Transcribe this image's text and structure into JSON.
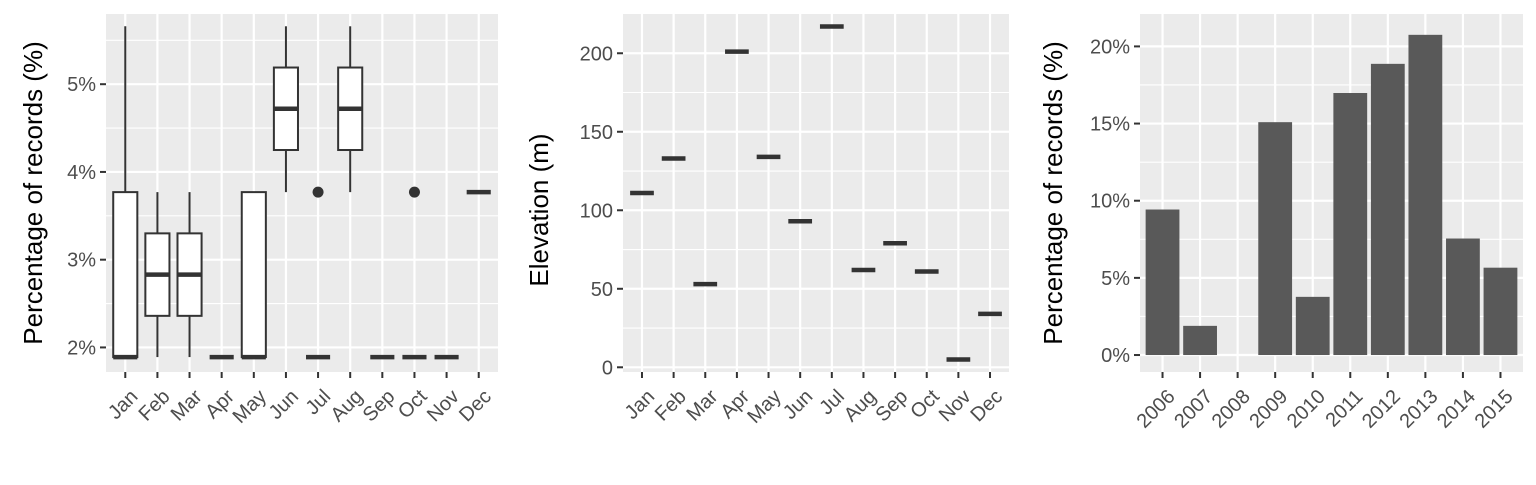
{
  "colors": {
    "panel_background": "#ebebeb",
    "grid": "#ffffff",
    "ink": "#333333",
    "bar_fill": "#595959",
    "box_fill": "#ffffff",
    "tick_text": "#4d4d4d"
  },
  "chart_data": [
    {
      "type": "boxplot",
      "ylabel": "Percentage of records (%)",
      "ylim": [
        1.72,
        5.8
      ],
      "yticks": [
        2,
        3,
        4,
        5
      ],
      "ytick_labels": [
        "2%",
        "3%",
        "4%",
        "5%"
      ],
      "categories": [
        "Jan",
        "Feb",
        "Mar",
        "Apr",
        "May",
        "Jun",
        "Jul",
        "Aug",
        "Sep",
        "Oct",
        "Nov",
        "Dec"
      ],
      "boxes": [
        {
          "min": 1.89,
          "q1": 1.89,
          "median": 1.89,
          "q3": 3.77,
          "max": 5.66,
          "outliers": []
        },
        {
          "min": 1.89,
          "q1": 2.36,
          "median": 2.83,
          "q3": 3.3,
          "max": 3.77,
          "outliers": []
        },
        {
          "min": 1.89,
          "q1": 2.36,
          "median": 2.83,
          "q3": 3.3,
          "max": 3.77,
          "outliers": []
        },
        {
          "min": 1.89,
          "q1": 1.89,
          "median": 1.89,
          "q3": 1.89,
          "max": 1.89,
          "outliers": []
        },
        {
          "min": 1.89,
          "q1": 1.89,
          "median": 1.89,
          "q3": 3.77,
          "max": 3.77,
          "outliers": []
        },
        {
          "min": 3.77,
          "q1": 4.25,
          "median": 4.72,
          "q3": 5.19,
          "max": 5.66,
          "outliers": []
        },
        {
          "min": 1.89,
          "q1": 1.89,
          "median": 1.89,
          "q3": 1.89,
          "max": 1.89,
          "outliers": [
            3.77
          ]
        },
        {
          "min": 3.77,
          "q1": 4.25,
          "median": 4.72,
          "q3": 5.19,
          "max": 5.66,
          "outliers": []
        },
        {
          "min": 1.89,
          "q1": 1.89,
          "median": 1.89,
          "q3": 1.89,
          "max": 1.89,
          "outliers": []
        },
        {
          "min": 1.89,
          "q1": 1.89,
          "median": 1.89,
          "q3": 1.89,
          "max": 1.89,
          "outliers": [
            3.77
          ]
        },
        {
          "min": 1.89,
          "q1": 1.89,
          "median": 1.89,
          "q3": 1.89,
          "max": 1.89,
          "outliers": []
        },
        {
          "min": 3.77,
          "q1": 3.77,
          "median": 3.77,
          "q3": 3.77,
          "max": 3.77,
          "outliers": []
        }
      ],
      "grid": true
    },
    {
      "type": "boxplot",
      "ylabel": "Elevation (m)",
      "ylim": [
        -3,
        225
      ],
      "yticks": [
        0,
        50,
        100,
        150,
        200
      ],
      "ytick_labels": [
        "0",
        "50",
        "100",
        "150",
        "200"
      ],
      "categories": [
        "Jan",
        "Feb",
        "Mar",
        "Apr",
        "May",
        "Jun",
        "Jul",
        "Aug",
        "Sep",
        "Oct",
        "Nov",
        "Dec"
      ],
      "values": [
        111,
        133,
        53,
        201,
        134,
        93,
        217,
        62,
        79,
        61,
        5,
        34
      ],
      "grid": true
    },
    {
      "type": "bar",
      "ylabel": "Percentage of records (%)",
      "ylim": [
        -1.1,
        22.1
      ],
      "yticks": [
        0,
        5,
        10,
        15,
        20
      ],
      "ytick_labels": [
        "0%",
        "5%",
        "10%",
        "15%",
        "20%"
      ],
      "categories": [
        "2006",
        "2007",
        "2008",
        "2009",
        "2010",
        "2011",
        "2012",
        "2013",
        "2014",
        "2015"
      ],
      "values": [
        9.43,
        1.89,
        0,
        15.09,
        3.77,
        16.98,
        18.87,
        20.75,
        7.55,
        5.66
      ],
      "grid": true
    }
  ]
}
